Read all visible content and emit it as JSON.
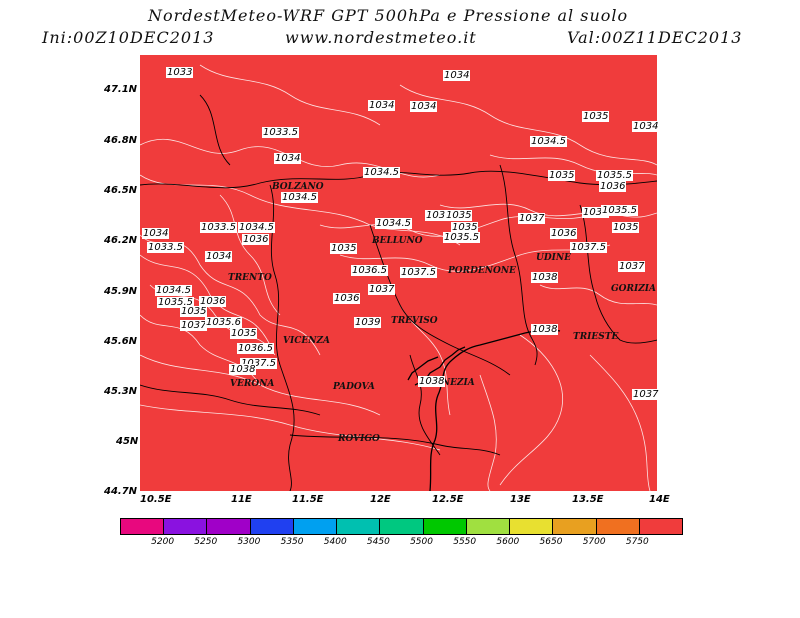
{
  "header": {
    "title": "NordestMeteo-WRF GPT 500hPa e Pressione al suolo",
    "init": "Ini:00Z10DEC2013",
    "site": "www.nordestmeteo.it",
    "valid": "Val:00Z11DEC2013"
  },
  "map": {
    "fill_color": "#f03c3c",
    "contour_color": "#ffffff",
    "lat_ticks": [
      "47.1N",
      "46.8N",
      "46.5N",
      "46.2N",
      "45.9N",
      "45.6N",
      "45.3N",
      "45N",
      "44.7N"
    ],
    "lon_ticks": [
      "10.5E",
      "11E",
      "11.5E",
      "12E",
      "12.5E",
      "13E",
      "13.5E",
      "14E"
    ],
    "cities": [
      "BOLZANO",
      "BELLUNO",
      "PORDENONE",
      "UDINE",
      "TRENTO",
      "GORIZIA",
      "TREVISO",
      "TRIESTE",
      "VICENZA",
      "VENEZIA",
      "VERONA",
      "PADOVA",
      "ROVIGO"
    ],
    "pressure_labels": [
      "1033",
      "1034",
      "1034",
      "1034",
      "1035",
      "1034",
      "1033.5",
      "1034.5",
      "1034",
      "1034.5",
      "1035",
      "1035.5",
      "1036",
      "1034.5",
      "1034",
      "1035",
      "1033.5",
      "1034.5",
      "1034",
      "1034.5",
      "1035",
      "1035.5",
      "1037",
      "1036",
      "1035.5",
      "1036",
      "1035",
      "1033.5",
      "1036",
      "1035",
      "1036.5",
      "1037.5",
      "1037.5",
      "1034",
      "1034.5",
      "1036",
      "1037",
      "1038",
      "1037",
      "1035.5",
      "1036",
      "1035",
      "1037",
      "1035.6",
      "1039",
      "1038",
      "1035",
      "1036.5",
      "1037.5",
      "1038",
      "1038",
      "1037"
    ]
  },
  "legend": {
    "colors": [
      "#e8087e",
      "#8a12e0",
      "#a000c8",
      "#2040f0",
      "#00a0f0",
      "#00c0b0",
      "#00c880",
      "#00c800",
      "#a0e040",
      "#e8e030",
      "#e8a020",
      "#f07020",
      "#f03c3c"
    ],
    "labels": [
      "5200",
      "5250",
      "5300",
      "5350",
      "5400",
      "5450",
      "5500",
      "5550",
      "5600",
      "5650",
      "5700",
      "5750"
    ]
  }
}
